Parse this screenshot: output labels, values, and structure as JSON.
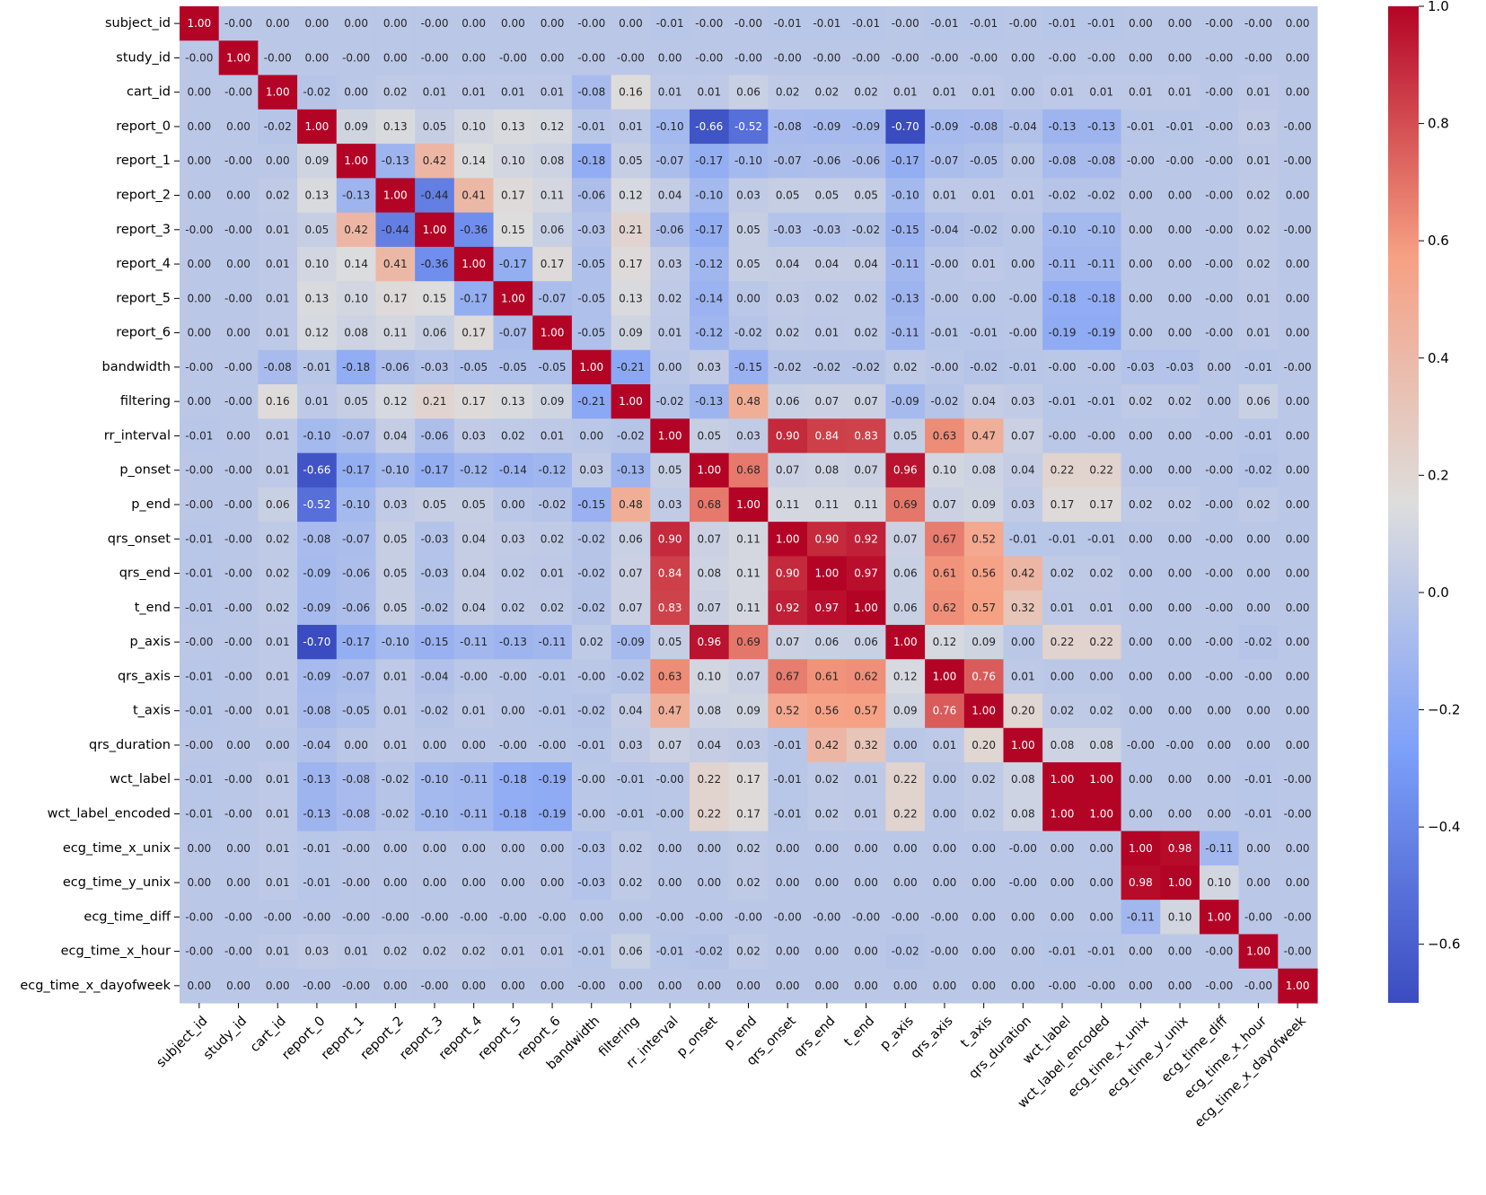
{
  "chart_data": {
    "type": "heatmap",
    "title": "",
    "xlabel": "",
    "ylabel": "",
    "colormap": "coolwarm",
    "vmin": -0.7,
    "vmax": 1.0,
    "annotation_format": "0.00",
    "colors": {
      "low": "#3b4cc0",
      "mid": "#dddddd",
      "high": "#b40426"
    },
    "labels": [
      "subject_id",
      "study_id",
      "cart_id",
      "report_0",
      "report_1",
      "report_2",
      "report_3",
      "report_4",
      "report_5",
      "report_6",
      "bandwidth",
      "filtering",
      "rr_interval",
      "p_onset",
      "p_end",
      "qrs_onset",
      "qrs_end",
      "t_end",
      "p_axis",
      "qrs_axis",
      "t_axis",
      "qrs_duration",
      "wct_label",
      "wct_label_encoded",
      "ecg_time_x_unix",
      "ecg_time_y_unix",
      "ecg_time_diff",
      "ecg_time_x_hour",
      "ecg_time_x_dayofweek"
    ],
    "colorbar_ticks": [
      "1.0",
      "0.8",
      "0.6",
      "0.4",
      "0.2",
      "0.0",
      "−0.2",
      "−0.4",
      "−0.6"
    ],
    "colorbar_tick_values": [
      1.0,
      0.8,
      0.6,
      0.4,
      0.2,
      0.0,
      -0.2,
      -0.4,
      -0.6
    ],
    "matrix": [
      [
        "1.00",
        "-0.00",
        "0.00",
        "0.00",
        "0.00",
        "0.00",
        "-0.00",
        "0.00",
        "0.00",
        "0.00",
        "-0.00",
        "0.00",
        "-0.01",
        "-0.00",
        "-0.00",
        "-0.01",
        "-0.01",
        "-0.01",
        "-0.00",
        "-0.01",
        "-0.01",
        "-0.00",
        "-0.01",
        "-0.01",
        "0.00",
        "0.00",
        "-0.00",
        "-0.00",
        "0.00"
      ],
      [
        "-0.00",
        "1.00",
        "-0.00",
        "0.00",
        "-0.00",
        "0.00",
        "-0.00",
        "0.00",
        "-0.00",
        "0.00",
        "-0.00",
        "-0.00",
        "0.00",
        "-0.00",
        "-0.00",
        "-0.00",
        "-0.00",
        "-0.00",
        "-0.00",
        "-0.00",
        "-0.00",
        "0.00",
        "-0.00",
        "-0.00",
        "0.00",
        "0.00",
        "-0.00",
        "-0.00",
        "0.00"
      ],
      [
        "0.00",
        "-0.00",
        "1.00",
        "-0.02",
        "0.00",
        "0.02",
        "0.01",
        "0.01",
        "0.01",
        "0.01",
        "-0.08",
        "0.16",
        "0.01",
        "0.01",
        "0.06",
        "0.02",
        "0.02",
        "0.02",
        "0.01",
        "0.01",
        "0.01",
        "0.00",
        "0.01",
        "0.01",
        "0.01",
        "0.01",
        "-0.00",
        "0.01",
        "0.00"
      ],
      [
        "0.00",
        "0.00",
        "-0.02",
        "1.00",
        "0.09",
        "0.13",
        "0.05",
        "0.10",
        "0.13",
        "0.12",
        "-0.01",
        "0.01",
        "-0.10",
        "-0.66",
        "-0.52",
        "-0.08",
        "-0.09",
        "-0.09",
        "-0.70",
        "-0.09",
        "-0.08",
        "-0.04",
        "-0.13",
        "-0.13",
        "-0.01",
        "-0.01",
        "-0.00",
        "0.03",
        "-0.00"
      ],
      [
        "0.00",
        "-0.00",
        "0.00",
        "0.09",
        "1.00",
        "-0.13",
        "0.42",
        "0.14",
        "0.10",
        "0.08",
        "-0.18",
        "0.05",
        "-0.07",
        "-0.17",
        "-0.10",
        "-0.07",
        "-0.06",
        "-0.06",
        "-0.17",
        "-0.07",
        "-0.05",
        "0.00",
        "-0.08",
        "-0.08",
        "-0.00",
        "-0.00",
        "-0.00",
        "0.01",
        "-0.00"
      ],
      [
        "0.00",
        "0.00",
        "0.02",
        "0.13",
        "-0.13",
        "1.00",
        "-0.44",
        "0.41",
        "0.17",
        "0.11",
        "-0.06",
        "0.12",
        "0.04",
        "-0.10",
        "0.03",
        "0.05",
        "0.05",
        "0.05",
        "-0.10",
        "0.01",
        "0.01",
        "0.01",
        "-0.02",
        "-0.02",
        "0.00",
        "0.00",
        "-0.00",
        "0.02",
        "0.00"
      ],
      [
        "-0.00",
        "-0.00",
        "0.01",
        "0.05",
        "0.42",
        "-0.44",
        "1.00",
        "-0.36",
        "0.15",
        "0.06",
        "-0.03",
        "0.21",
        "-0.06",
        "-0.17",
        "0.05",
        "-0.03",
        "-0.03",
        "-0.02",
        "-0.15",
        "-0.04",
        "-0.02",
        "0.00",
        "-0.10",
        "-0.10",
        "0.00",
        "0.00",
        "-0.00",
        "0.02",
        "-0.00"
      ],
      [
        "0.00",
        "0.00",
        "0.01",
        "0.10",
        "0.14",
        "0.41",
        "-0.36",
        "1.00",
        "-0.17",
        "0.17",
        "-0.05",
        "0.17",
        "0.03",
        "-0.12",
        "0.05",
        "0.04",
        "0.04",
        "0.04",
        "-0.11",
        "-0.00",
        "0.01",
        "0.00",
        "-0.11",
        "-0.11",
        "0.00",
        "0.00",
        "-0.00",
        "0.02",
        "0.00"
      ],
      [
        "0.00",
        "-0.00",
        "0.01",
        "0.13",
        "0.10",
        "0.17",
        "0.15",
        "-0.17",
        "1.00",
        "-0.07",
        "-0.05",
        "0.13",
        "0.02",
        "-0.14",
        "0.00",
        "0.03",
        "0.02",
        "0.02",
        "-0.13",
        "-0.00",
        "0.00",
        "-0.00",
        "-0.18",
        "-0.18",
        "0.00",
        "0.00",
        "-0.00",
        "0.01",
        "0.00"
      ],
      [
        "0.00",
        "0.00",
        "0.01",
        "0.12",
        "0.08",
        "0.11",
        "0.06",
        "0.17",
        "-0.07",
        "1.00",
        "-0.05",
        "0.09",
        "0.01",
        "-0.12",
        "-0.02",
        "0.02",
        "0.01",
        "0.02",
        "-0.11",
        "-0.01",
        "-0.01",
        "-0.00",
        "-0.19",
        "-0.19",
        "0.00",
        "0.00",
        "-0.00",
        "0.01",
        "0.00"
      ],
      [
        "-0.00",
        "-0.00",
        "-0.08",
        "-0.01",
        "-0.18",
        "-0.06",
        "-0.03",
        "-0.05",
        "-0.05",
        "-0.05",
        "1.00",
        "-0.21",
        "0.00",
        "0.03",
        "-0.15",
        "-0.02",
        "-0.02",
        "-0.02",
        "0.02",
        "-0.00",
        "-0.02",
        "-0.01",
        "-0.00",
        "-0.00",
        "-0.03",
        "-0.03",
        "0.00",
        "-0.01",
        "-0.00"
      ],
      [
        "0.00",
        "-0.00",
        "0.16",
        "0.01",
        "0.05",
        "0.12",
        "0.21",
        "0.17",
        "0.13",
        "0.09",
        "-0.21",
        "1.00",
        "-0.02",
        "-0.13",
        "0.48",
        "0.06",
        "0.07",
        "0.07",
        "-0.09",
        "-0.02",
        "0.04",
        "0.03",
        "-0.01",
        "-0.01",
        "0.02",
        "0.02",
        "0.00",
        "0.06",
        "0.00"
      ],
      [
        "-0.01",
        "0.00",
        "0.01",
        "-0.10",
        "-0.07",
        "0.04",
        "-0.06",
        "0.03",
        "0.02",
        "0.01",
        "0.00",
        "-0.02",
        "1.00",
        "0.05",
        "0.03",
        "0.90",
        "0.84",
        "0.83",
        "0.05",
        "0.63",
        "0.47",
        "0.07",
        "-0.00",
        "-0.00",
        "0.00",
        "0.00",
        "-0.00",
        "-0.01",
        "0.00"
      ],
      [
        "-0.00",
        "-0.00",
        "0.01",
        "-0.66",
        "-0.17",
        "-0.10",
        "-0.17",
        "-0.12",
        "-0.14",
        "-0.12",
        "0.03",
        "-0.13",
        "0.05",
        "1.00",
        "0.68",
        "0.07",
        "0.08",
        "0.07",
        "0.96",
        "0.10",
        "0.08",
        "0.04",
        "0.22",
        "0.22",
        "0.00",
        "0.00",
        "-0.00",
        "-0.02",
        "0.00"
      ],
      [
        "-0.00",
        "-0.00",
        "0.06",
        "-0.52",
        "-0.10",
        "0.03",
        "0.05",
        "0.05",
        "0.00",
        "-0.02",
        "-0.15",
        "0.48",
        "0.03",
        "0.68",
        "1.00",
        "0.11",
        "0.11",
        "0.11",
        "0.69",
        "0.07",
        "0.09",
        "0.03",
        "0.17",
        "0.17",
        "0.02",
        "0.02",
        "-0.00",
        "0.02",
        "0.00"
      ],
      [
        "-0.01",
        "-0.00",
        "0.02",
        "-0.08",
        "-0.07",
        "0.05",
        "-0.03",
        "0.04",
        "0.03",
        "0.02",
        "-0.02",
        "0.06",
        "0.90",
        "0.07",
        "0.11",
        "1.00",
        "0.90",
        "0.92",
        "0.07",
        "0.67",
        "0.52",
        "-0.01",
        "-0.01",
        "-0.01",
        "0.00",
        "0.00",
        "-0.00",
        "0.00",
        "0.00"
      ],
      [
        "-0.01",
        "-0.00",
        "0.02",
        "-0.09",
        "-0.06",
        "0.05",
        "-0.03",
        "0.04",
        "0.02",
        "0.01",
        "-0.02",
        "0.07",
        "0.84",
        "0.08",
        "0.11",
        "0.90",
        "1.00",
        "0.97",
        "0.06",
        "0.61",
        "0.56",
        "0.42",
        "0.02",
        "0.02",
        "0.00",
        "0.00",
        "-0.00",
        "0.00",
        "0.00"
      ],
      [
        "-0.01",
        "-0.00",
        "0.02",
        "-0.09",
        "-0.06",
        "0.05",
        "-0.02",
        "0.04",
        "0.02",
        "0.02",
        "-0.02",
        "0.07",
        "0.83",
        "0.07",
        "0.11",
        "0.92",
        "0.97",
        "1.00",
        "0.06",
        "0.62",
        "0.57",
        "0.32",
        "0.01",
        "0.01",
        "0.00",
        "0.00",
        "-0.00",
        "0.00",
        "0.00"
      ],
      [
        "-0.00",
        "-0.00",
        "0.01",
        "-0.70",
        "-0.17",
        "-0.10",
        "-0.15",
        "-0.11",
        "-0.13",
        "-0.11",
        "0.02",
        "-0.09",
        "0.05",
        "0.96",
        "0.69",
        "0.07",
        "0.06",
        "0.06",
        "1.00",
        "0.12",
        "0.09",
        "0.00",
        "0.22",
        "0.22",
        "0.00",
        "0.00",
        "-0.00",
        "-0.02",
        "0.00"
      ],
      [
        "-0.01",
        "-0.00",
        "0.01",
        "-0.09",
        "-0.07",
        "0.01",
        "-0.04",
        "-0.00",
        "-0.00",
        "-0.01",
        "-0.00",
        "-0.02",
        "0.63",
        "0.10",
        "0.07",
        "0.67",
        "0.61",
        "0.62",
        "0.12",
        "1.00",
        "0.76",
        "0.01",
        "0.00",
        "0.00",
        "0.00",
        "0.00",
        "-0.00",
        "-0.00",
        "0.00"
      ],
      [
        "-0.01",
        "-0.00",
        "0.01",
        "-0.08",
        "-0.05",
        "0.01",
        "-0.02",
        "0.01",
        "0.00",
        "-0.01",
        "-0.02",
        "0.04",
        "0.47",
        "0.08",
        "0.09",
        "0.52",
        "0.56",
        "0.57",
        "0.09",
        "0.76",
        "1.00",
        "0.20",
        "0.02",
        "0.02",
        "0.00",
        "0.00",
        "0.00",
        "0.00",
        "0.00"
      ],
      [
        "-0.00",
        "0.00",
        "0.00",
        "-0.04",
        "0.00",
        "0.01",
        "0.00",
        "0.00",
        "-0.00",
        "-0.00",
        "-0.01",
        "0.03",
        "0.07",
        "0.04",
        "0.03",
        "-0.01",
        "0.42",
        "0.32",
        "0.00",
        "0.01",
        "0.20",
        "1.00",
        "0.08",
        "0.08",
        "-0.00",
        "-0.00",
        "0.00",
        "0.00",
        "0.00"
      ],
      [
        "-0.01",
        "-0.00",
        "0.01",
        "-0.13",
        "-0.08",
        "-0.02",
        "-0.10",
        "-0.11",
        "-0.18",
        "-0.19",
        "-0.00",
        "-0.01",
        "-0.00",
        "0.22",
        "0.17",
        "-0.01",
        "0.02",
        "0.01",
        "0.22",
        "0.00",
        "0.02",
        "0.08",
        "1.00",
        "1.00",
        "0.00",
        "0.00",
        "0.00",
        "-0.01",
        "-0.00"
      ],
      [
        "-0.01",
        "-0.00",
        "0.01",
        "-0.13",
        "-0.08",
        "-0.02",
        "-0.10",
        "-0.11",
        "-0.18",
        "-0.19",
        "-0.00",
        "-0.01",
        "-0.00",
        "0.22",
        "0.17",
        "-0.01",
        "0.02",
        "0.01",
        "0.22",
        "0.00",
        "0.02",
        "0.08",
        "1.00",
        "1.00",
        "0.00",
        "0.00",
        "0.00",
        "-0.01",
        "-0.00"
      ],
      [
        "0.00",
        "0.00",
        "0.01",
        "-0.01",
        "-0.00",
        "0.00",
        "0.00",
        "0.00",
        "0.00",
        "0.00",
        "-0.03",
        "0.02",
        "0.00",
        "0.00",
        "0.02",
        "0.00",
        "0.00",
        "0.00",
        "0.00",
        "0.00",
        "0.00",
        "-0.00",
        "0.00",
        "0.00",
        "1.00",
        "0.98",
        "-0.11",
        "0.00",
        "0.00"
      ],
      [
        "0.00",
        "0.00",
        "0.01",
        "-0.01",
        "-0.00",
        "0.00",
        "0.00",
        "0.00",
        "0.00",
        "0.00",
        "-0.03",
        "0.02",
        "0.00",
        "0.00",
        "0.02",
        "0.00",
        "0.00",
        "0.00",
        "0.00",
        "0.00",
        "0.00",
        "-0.00",
        "0.00",
        "0.00",
        "0.98",
        "1.00",
        "0.10",
        "0.00",
        "0.00"
      ],
      [
        "-0.00",
        "-0.00",
        "-0.00",
        "-0.00",
        "-0.00",
        "-0.00",
        "-0.00",
        "-0.00",
        "-0.00",
        "-0.00",
        "0.00",
        "0.00",
        "-0.00",
        "-0.00",
        "-0.00",
        "-0.00",
        "-0.00",
        "-0.00",
        "-0.00",
        "-0.00",
        "0.00",
        "0.00",
        "0.00",
        "0.00",
        "-0.11",
        "0.10",
        "1.00",
        "-0.00",
        "-0.00"
      ],
      [
        "-0.00",
        "-0.00",
        "0.01",
        "0.03",
        "0.01",
        "0.02",
        "0.02",
        "0.02",
        "0.01",
        "0.01",
        "-0.01",
        "0.06",
        "-0.01",
        "-0.02",
        "0.02",
        "0.00",
        "0.00",
        "0.00",
        "-0.02",
        "-0.00",
        "0.00",
        "0.00",
        "-0.01",
        "-0.01",
        "0.00",
        "0.00",
        "-0.00",
        "1.00",
        "-0.00"
      ],
      [
        "0.00",
        "0.00",
        "0.00",
        "-0.00",
        "-0.00",
        "0.00",
        "-0.00",
        "0.00",
        "0.00",
        "0.00",
        "-0.00",
        "0.00",
        "0.00",
        "0.00",
        "0.00",
        "0.00",
        "0.00",
        "0.00",
        "0.00",
        "0.00",
        "0.00",
        "0.00",
        "-0.00",
        "-0.00",
        "0.00",
        "0.00",
        "-0.00",
        "-0.00",
        "1.00"
      ]
    ]
  }
}
